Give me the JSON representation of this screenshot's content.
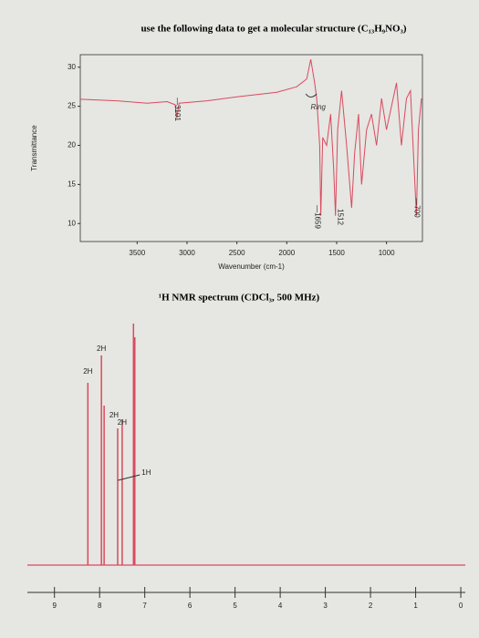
{
  "title": "use the following data to get a molecular structure (C₁₃H₉NO₃)",
  "ir": {
    "type": "line",
    "ylabel": "Transmittance",
    "xlabel": "Wavenumber (cm-1)",
    "color": "#d94a5e",
    "xlim": [
      4070,
      640
    ],
    "ylim": [
      7.7,
      31.6
    ],
    "xticks": [
      3500,
      3000,
      2500,
      2000,
      1500,
      1000
    ],
    "yticks": [
      10,
      15,
      20,
      25,
      30
    ],
    "x": [
      4070,
      3700,
      3400,
      3200,
      3120,
      3101,
      3080,
      2800,
      2500,
      2100,
      1900,
      1800,
      1760,
      1720,
      1700,
      1670,
      1659,
      1640,
      1600,
      1560,
      1530,
      1512,
      1490,
      1450,
      1400,
      1350,
      1320,
      1280,
      1250,
      1200,
      1150,
      1100,
      1050,
      1000,
      950,
      900,
      850,
      800,
      760,
      700,
      680,
      650
    ],
    "values": [
      25.9,
      25.7,
      25.4,
      25.6,
      25.2,
      23.5,
      25.4,
      25.7,
      26.2,
      26.8,
      27.5,
      28.5,
      31,
      28,
      26,
      20,
      11,
      21,
      20,
      24,
      17,
      11,
      22,
      27,
      20,
      12,
      19,
      24,
      15,
      22,
      24,
      20,
      26,
      22,
      25,
      28,
      20,
      26,
      27,
      11,
      22,
      26
    ],
    "annotations": [
      {
        "text": "—3101",
        "x": 3101
      },
      {
        "text": "—1659",
        "x": 1659
      },
      {
        "text": "1512",
        "x": 1512
      },
      {
        "text": "—700",
        "x": 700
      }
    ],
    "note": "Ring"
  },
  "nmr": {
    "type": "stem",
    "title": "¹H NMR spectrum (CDCl₃, 500 MHz)",
    "color": "#d94a5e",
    "xlim": [
      9.6,
      -0.1
    ],
    "xticks": [
      9,
      8,
      7,
      6,
      5,
      4,
      3,
      2,
      1,
      0
    ],
    "ylim": [
      0,
      280
    ],
    "x": [
      8.26,
      7.96,
      7.9,
      7.6,
      7.5,
      7.25,
      7.22
    ],
    "values": [
      200,
      230,
      175,
      150,
      160,
      265,
      250
    ],
    "integrations": [
      {
        "label": "2H",
        "x": 8.26
      },
      {
        "label": "2H",
        "x": 7.96
      },
      {
        "label": "2H",
        "x": 7.6
      },
      {
        "label": "2H",
        "x": 7.5
      },
      {
        "label": "1H",
        "x": 7.23
      }
    ]
  }
}
